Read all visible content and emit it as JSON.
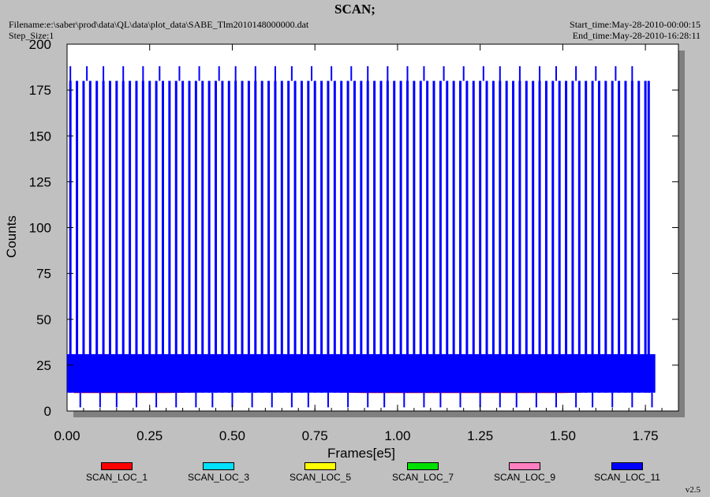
{
  "header": {
    "title": "SCAN;",
    "filename": "Filename:e:\\saber\\prod\\data\\QL\\data\\plot_data\\SABE_Tlm2010148000000.dat",
    "step_size": "Step_Size:1",
    "start_time": "Start_time:May-28-2010-00:00:15",
    "end_time": "End_time:May-28-2010-16:28:11"
  },
  "footer": {
    "version": "v2.5"
  },
  "colors": {
    "background": "#c0c0c0",
    "plot_area": "#ffffff",
    "plot_shadow": "#808080"
  },
  "chart_data": {
    "type": "line",
    "title": "SCAN;",
    "xlabel": "Frames[e5]",
    "ylabel": "Counts",
    "xlim": [
      0,
      1.85
    ],
    "ylim": [
      0,
      200
    ],
    "x_ticks": [
      0.0,
      0.25,
      0.5,
      0.75,
      1.0,
      1.25,
      1.5,
      1.75
    ],
    "x_tick_labels": [
      "0.00",
      "0.25",
      "0.50",
      "0.75",
      "1.00",
      "1.25",
      "1.50",
      "1.75"
    ],
    "y_ticks": [
      0,
      25,
      50,
      75,
      100,
      125,
      150,
      175,
      200
    ],
    "y_tick_labels": [
      "0",
      "25",
      "50",
      "75",
      "100",
      "125",
      "150",
      "175",
      "200"
    ],
    "grid": false,
    "legend_position": "bottom",
    "series": [
      {
        "name": "SCAN_LOC_1",
        "color": "#ff0000",
        "x": [
          0.02,
          0.3,
          0.6,
          0.9,
          1.2,
          1.5,
          1.75
        ],
        "y": [
          10,
          10,
          11,
          10,
          10,
          10,
          11
        ]
      },
      {
        "name": "SCAN_LOC_3",
        "color": "#00e0ff",
        "x": [
          0.02,
          0.3,
          0.6,
          0.9,
          1.2,
          1.5,
          1.75
        ],
        "y": [
          12,
          12,
          12,
          12,
          12,
          12,
          12
        ]
      },
      {
        "name": "SCAN_LOC_5",
        "color": "#ffff00",
        "x": [
          0.02,
          0.3,
          0.6,
          0.9,
          1.2,
          1.5,
          1.75
        ],
        "y": [
          14,
          14,
          14,
          14,
          14,
          14,
          14
        ]
      },
      {
        "name": "SCAN_LOC_7",
        "color": "#00e000",
        "x": [
          0.02,
          0.3,
          0.6,
          0.9,
          1.2,
          1.5,
          1.75
        ],
        "y": [
          16,
          16,
          16,
          16,
          16,
          16,
          16
        ]
      },
      {
        "name": "SCAN_LOC_9",
        "color": "#ff80c0",
        "x": [
          0.02,
          0.3,
          0.6,
          0.9,
          1.2,
          1.5,
          1.75
        ],
        "y": [
          18,
          18,
          18,
          18,
          18,
          18,
          18
        ]
      },
      {
        "name": "SCAN_LOC_11",
        "color": "#0000ff",
        "baseline_band": [
          10,
          31
        ],
        "high_level": 180,
        "peak_level": 188,
        "low_level": 2,
        "spike_x": [
          0.01,
          0.03,
          0.05,
          0.07,
          0.09,
          0.11,
          0.13,
          0.15,
          0.17,
          0.19,
          0.21,
          0.23,
          0.25,
          0.27,
          0.29,
          0.31,
          0.33,
          0.35,
          0.37,
          0.39,
          0.41,
          0.43,
          0.45,
          0.47,
          0.49,
          0.51,
          0.53,
          0.55,
          0.57,
          0.59,
          0.61,
          0.63,
          0.65,
          0.67,
          0.69,
          0.71,
          0.73,
          0.75,
          0.77,
          0.79,
          0.81,
          0.83,
          0.85,
          0.87,
          0.89,
          0.91,
          0.93,
          0.95,
          0.97,
          0.99,
          1.01,
          1.03,
          1.05,
          1.07,
          1.09,
          1.11,
          1.13,
          1.15,
          1.17,
          1.19,
          1.21,
          1.23,
          1.25,
          1.27,
          1.29,
          1.31,
          1.33,
          1.35,
          1.37,
          1.39,
          1.41,
          1.43,
          1.45,
          1.47,
          1.49,
          1.51,
          1.53,
          1.55,
          1.57,
          1.59,
          1.61,
          1.63,
          1.65,
          1.67,
          1.69,
          1.71,
          1.73,
          1.75,
          1.76
        ],
        "peak_x": [
          0.01,
          0.06,
          0.11,
          0.17,
          0.23,
          0.28,
          0.34,
          0.4,
          0.46,
          0.51,
          0.57,
          0.63,
          0.68,
          0.74,
          0.8,
          0.86,
          0.91,
          0.97,
          1.03,
          1.08,
          1.14,
          1.2,
          1.26,
          1.31,
          1.37,
          1.43,
          1.48,
          1.54,
          1.6,
          1.66,
          1.71
        ],
        "low_x": [
          0.04,
          0.1,
          0.15,
          0.21,
          0.27,
          0.33,
          0.39,
          0.44,
          0.5,
          0.56,
          0.62,
          0.68,
          0.73,
          0.79,
          0.85,
          0.91,
          0.96,
          1.02,
          1.08,
          1.13,
          1.19,
          1.25,
          1.31,
          1.36,
          1.42,
          1.48,
          1.54,
          1.59,
          1.65,
          1.71,
          1.77
        ]
      }
    ]
  }
}
